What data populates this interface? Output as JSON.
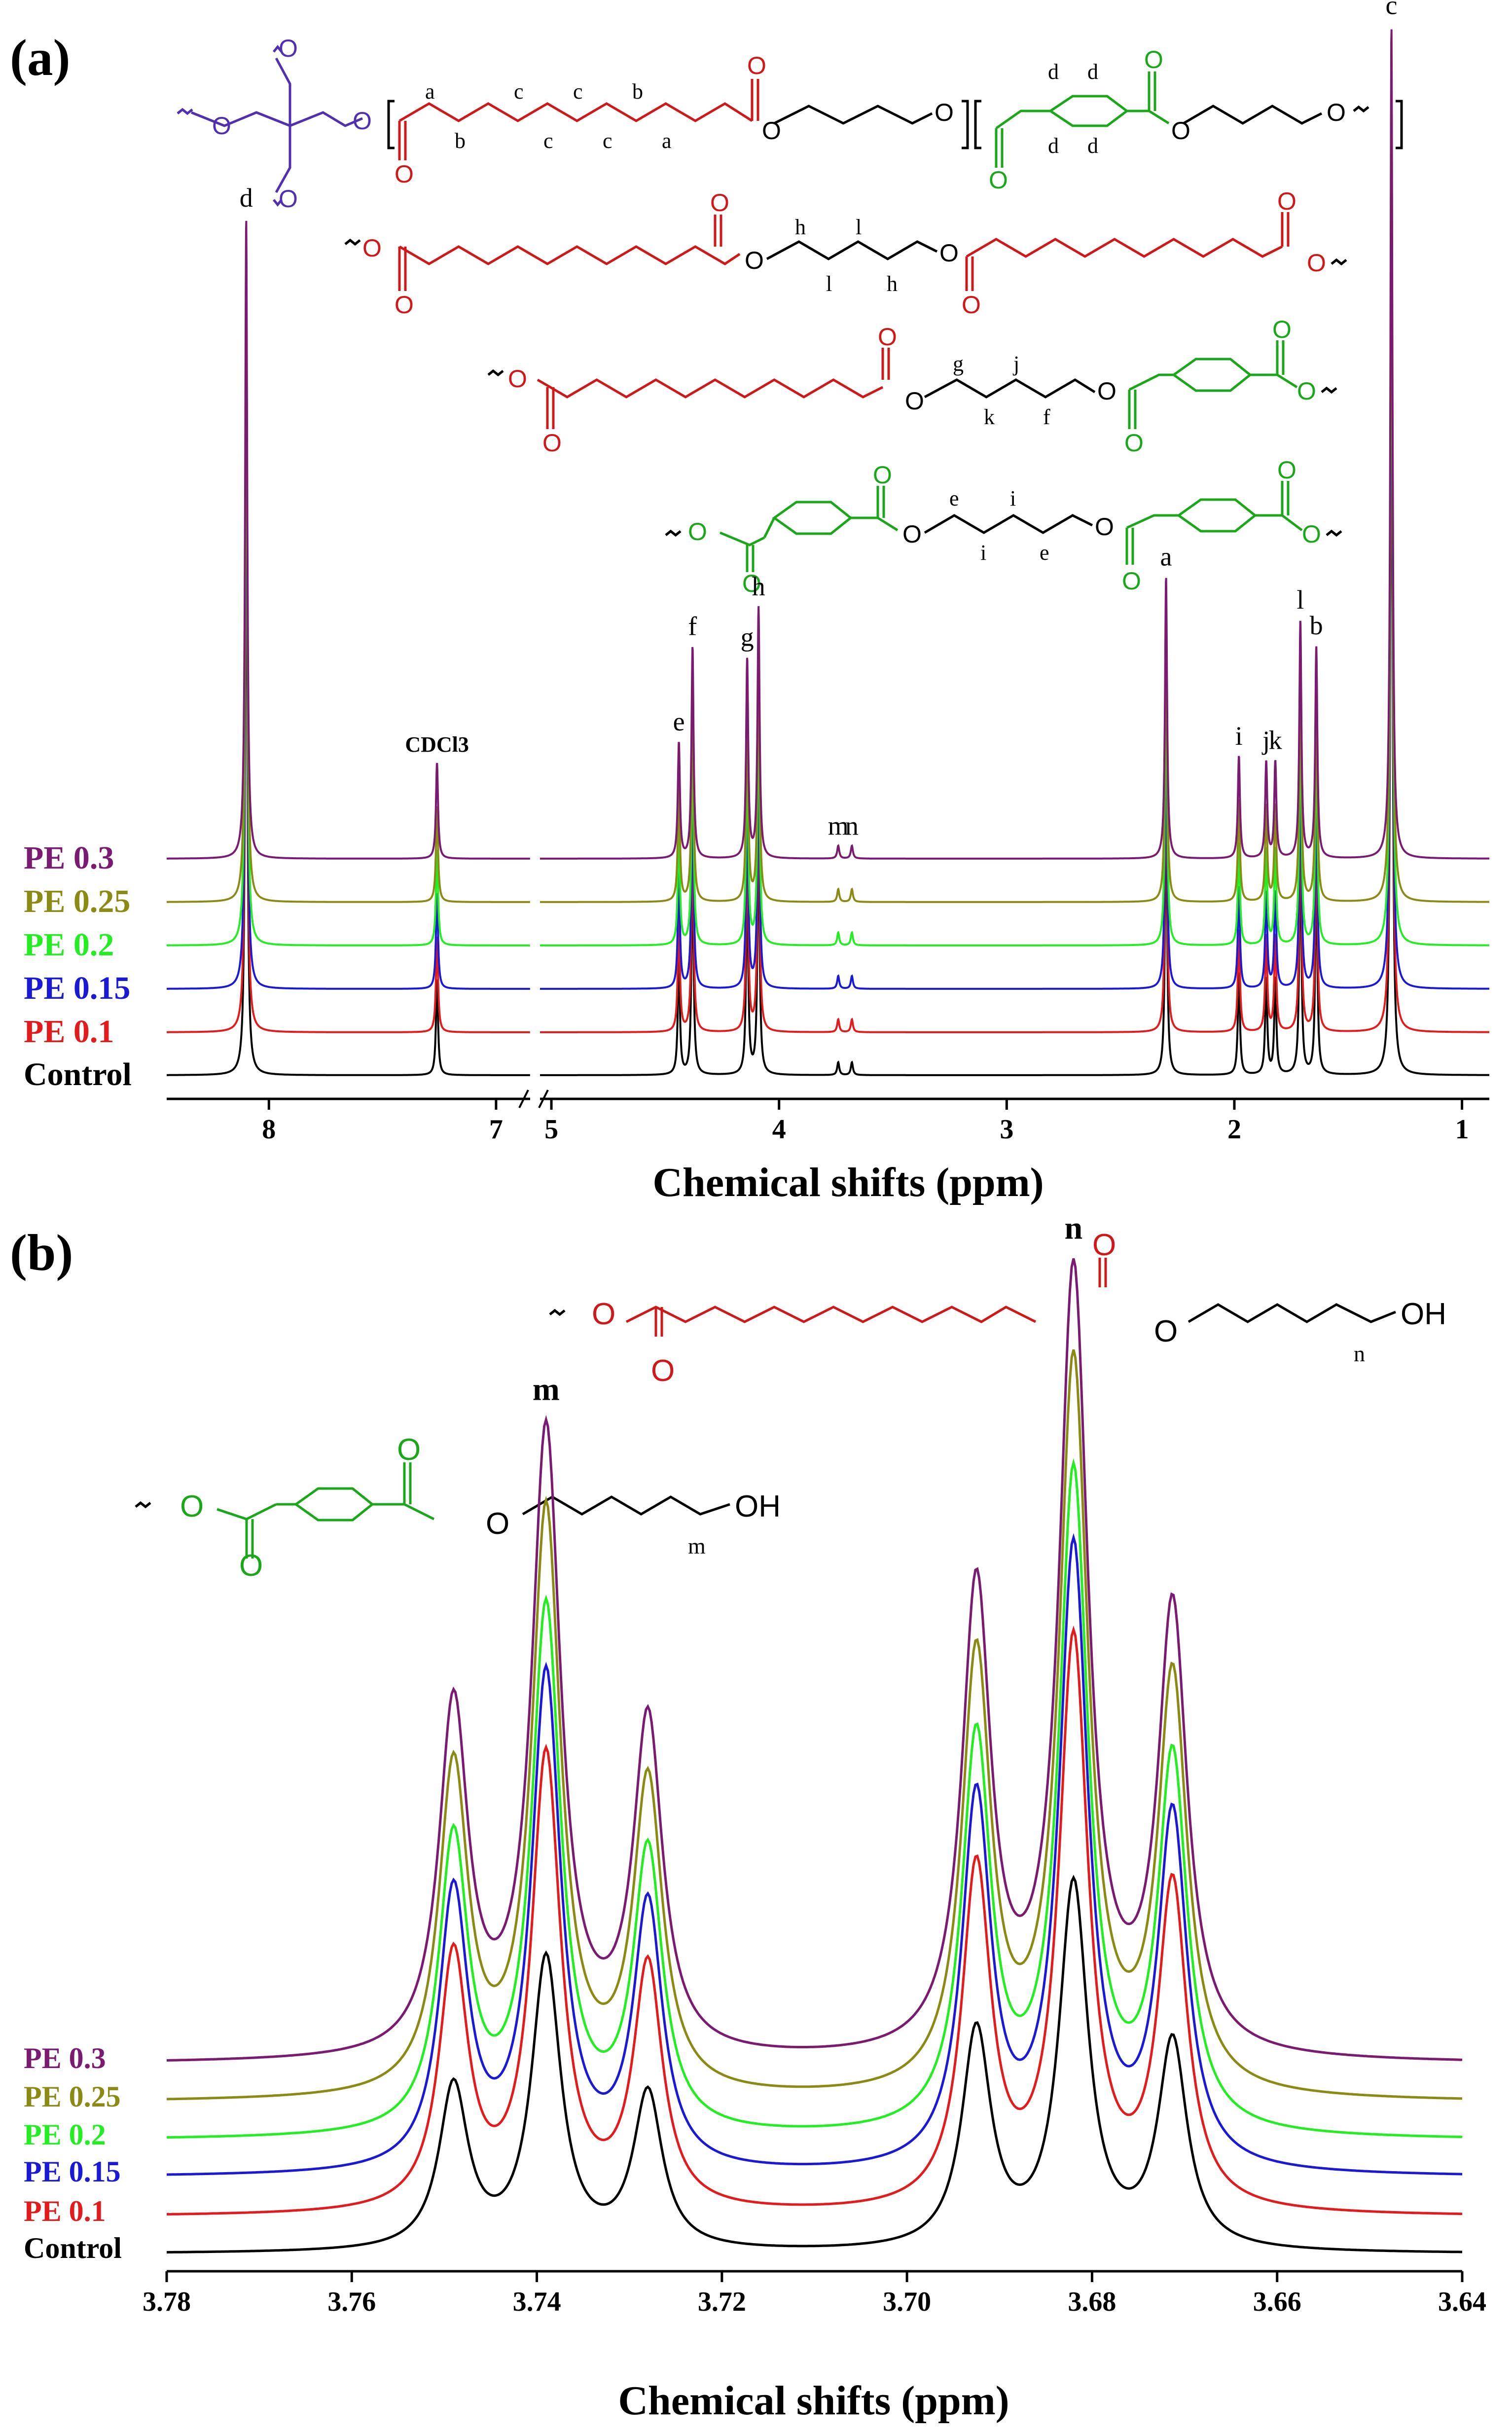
{
  "chart_data": [
    {
      "type": "line",
      "panel_label": "(a)",
      "xlabel": "Chemical shifts (ppm)",
      "ylabel": "",
      "x_axis_reversed": true,
      "axis_break_between": [
        7,
        5
      ],
      "x_ticks": [
        "8",
        "7",
        "5",
        "4",
        "3",
        "2",
        "1"
      ],
      "legend_placement": "left, stacked beside traces",
      "series": [
        {
          "name": "Control",
          "color": "#000000"
        },
        {
          "name": "PE 0.1",
          "color": "#e21c1c"
        },
        {
          "name": "PE 0.15",
          "color": "#1a1ad6"
        },
        {
          "name": "PE 0.2",
          "color": "#22ee22"
        },
        {
          "name": "PE 0.25",
          "color": "#8a8a14"
        },
        {
          "name": "PE 0.3",
          "color": "#7a1a70"
        }
      ],
      "peaks": [
        {
          "label": "d",
          "ppm": 8.1,
          "height": 1.0
        },
        {
          "label": "CDCl3",
          "ppm": 7.26,
          "height": 0.15
        },
        {
          "label": "e",
          "ppm": 4.44,
          "height": 0.18
        },
        {
          "label": "f",
          "ppm": 4.38,
          "height": 0.33
        },
        {
          "label": "g",
          "ppm": 4.14,
          "height": 0.31
        },
        {
          "label": "h",
          "ppm": 4.09,
          "height": 0.39
        },
        {
          "label": "m",
          "ppm": 3.74,
          "height": 0.02
        },
        {
          "label": "n",
          "ppm": 3.68,
          "height": 0.02
        },
        {
          "label": "a",
          "ppm": 2.3,
          "height": 0.44
        },
        {
          "label": "i",
          "ppm": 1.98,
          "height": 0.16
        },
        {
          "label": "j",
          "ppm": 1.86,
          "height": 0.15
        },
        {
          "label": "k",
          "ppm": 1.82,
          "height": 0.15
        },
        {
          "label": "l",
          "ppm": 1.71,
          "height": 0.37
        },
        {
          "label": "b",
          "ppm": 1.64,
          "height": 0.33
        },
        {
          "label": "c",
          "ppm": 1.31,
          "height": 1.3
        }
      ]
    },
    {
      "type": "line",
      "panel_label": "(b)",
      "xlabel": "Chemical shifts (ppm)",
      "ylabel": "",
      "x_axis_reversed": true,
      "xlim": [
        3.78,
        3.64
      ],
      "x_ticks": [
        "3.78",
        "3.76",
        "3.74",
        "3.72",
        "3.70",
        "3.68",
        "3.66",
        "3.64"
      ],
      "legend_placement": "left, stacked beside traces",
      "series": [
        {
          "name": "Control",
          "color": "#000000",
          "scale": 0.5
        },
        {
          "name": "PE 0.1",
          "color": "#e21c1c",
          "scale": 0.78
        },
        {
          "name": "PE 0.15",
          "color": "#1a1ad6",
          "scale": 0.85
        },
        {
          "name": "PE 0.2",
          "color": "#22ee22",
          "scale": 0.9
        },
        {
          "name": "PE 0.25",
          "color": "#8a8a14",
          "scale": 1.0
        },
        {
          "name": "PE 0.3",
          "color": "#7a1a70",
          "scale": 1.07
        }
      ],
      "peaks": [
        {
          "label": "",
          "ppm": 3.749,
          "height": 0.45
        },
        {
          "label": "m",
          "ppm": 3.739,
          "height": 0.8
        },
        {
          "label": "",
          "ppm": 3.728,
          "height": 0.43
        },
        {
          "label": "",
          "ppm": 3.6925,
          "height": 0.6
        },
        {
          "label": "n",
          "ppm": 3.682,
          "height": 1.0
        },
        {
          "label": "",
          "ppm": 3.6713,
          "height": 0.57
        }
      ]
    }
  ],
  "structures": {
    "polymer": {
      "labels_top": [
        "a",
        "c",
        "c",
        "b"
      ],
      "labels_bottom": [
        "b",
        "c",
        "c",
        "a"
      ],
      "aromatic_top": [
        "d",
        "d"
      ],
      "aromatic_bottom": [
        "d",
        "d"
      ]
    },
    "seg_hh": [
      "h",
      "l",
      "l",
      "h"
    ],
    "seg_gf": [
      "g",
      "j",
      "k",
      "f"
    ],
    "seg_ee": [
      "e",
      "i",
      "i",
      "e"
    ],
    "end_n": {
      "oh": "OH",
      "label": "n"
    },
    "end_m": {
      "oh": "OH",
      "label": "m"
    },
    "atom_o": "O"
  }
}
